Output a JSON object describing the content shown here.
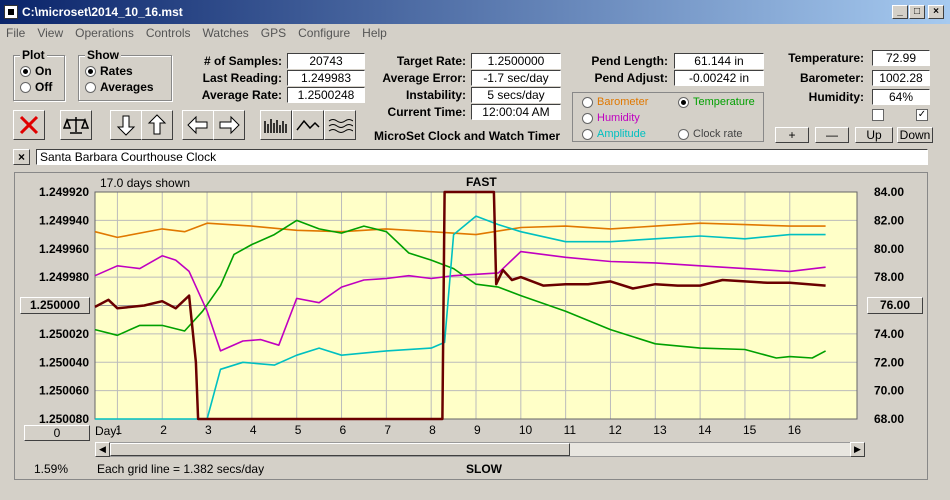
{
  "window": {
    "title": "C:\\microset\\2014_10_16.mst"
  },
  "menu": [
    "File",
    "View",
    "Operations",
    "Controls",
    "Watches",
    "GPS",
    "Configure",
    "Help"
  ],
  "plot_group": {
    "title": "Plot",
    "on": "On",
    "off": "Off",
    "selected": "On"
  },
  "show_group": {
    "title": "Show",
    "rates": "Rates",
    "averages": "Averages",
    "selected": "Rates"
  },
  "stats": [
    {
      "label": "# of Samples:",
      "value": "20743"
    },
    {
      "label": "Last Reading:",
      "value": "1.249983"
    },
    {
      "label": "Average Rate:",
      "value": "1.2500248"
    }
  ],
  "rates": [
    {
      "label": "Target Rate:",
      "value": "1.2500000"
    },
    {
      "label": "Average Error:",
      "value": "-1.7 sec/day"
    },
    {
      "label": "Instability:",
      "value": "5 secs/day"
    },
    {
      "label": "Current Time:",
      "value": "12:00:04 AM"
    }
  ],
  "pend": [
    {
      "label": "Pend Length:",
      "value": "61.144 in"
    },
    {
      "label": "Pend Adjust:",
      "value": "-0.00242 in"
    }
  ],
  "env": [
    {
      "label": "Temperature:",
      "value": "72.99"
    },
    {
      "label": "Barometer:",
      "value": "1002.28"
    },
    {
      "label": "Humidity:",
      "value": "64%"
    }
  ],
  "app_caption": "MicroSet Clock and Watch Timer",
  "sensor_options": {
    "barometer": {
      "label": "Barometer",
      "color": "#e07800"
    },
    "temperature": {
      "label": "Temperature",
      "color": "#00a000"
    },
    "humidity": {
      "label": "Humidity",
      "color": "#c000c0"
    },
    "amplitude": {
      "label": "Amplitude",
      "color": "#00c0c0"
    },
    "clock_rate": {
      "label": "Clock rate",
      "color": "#444444"
    },
    "selected": "temperature"
  },
  "env_buttons": {
    "plus": "+",
    "minus": "—",
    "up": "Up",
    "down": "Down"
  },
  "watch_name": "Santa Barbara Courthouse Clock",
  "chart_data": {
    "type": "line",
    "days_shown": "17.0 days shown",
    "top_label": "FAST",
    "bottom_label": "SLOW",
    "grid_note": "Each grid line = 1.382 secs/day",
    "left_ticks": [
      "1.249920",
      "1.249940",
      "1.249960",
      "1.249980",
      "1.250000",
      "1.250020",
      "1.250040",
      "1.250060",
      "1.250080"
    ],
    "right_ticks": [
      "84.00",
      "82.00",
      "80.00",
      "78.00",
      "76.00",
      "74.00",
      "72.00",
      "70.00",
      "68.00"
    ],
    "center_left_value": "1.250000",
    "center_right_value": "76.00",
    "left_range": [
      1.24992,
      1.25008
    ],
    "right_range": [
      68,
      84
    ],
    "x_label": "Day:",
    "x_range": [
      0.5,
      17.5
    ],
    "x_ticks": [
      1,
      2,
      3,
      4,
      5,
      6,
      7,
      8,
      9,
      10,
      11,
      12,
      13,
      14,
      15,
      16
    ],
    "x_tick_labels": [
      "1",
      "2",
      "3",
      "4",
      "5",
      "6",
      "7",
      "8",
      "9",
      "10",
      "11",
      "12",
      "13",
      "14",
      "15",
      "16"
    ],
    "bottom_left_value": "0",
    "zoom_percent": "1.59%",
    "series": [
      {
        "key": "barometer",
        "color": "#e07800",
        "x": [
          0.5,
          1,
          2,
          2.5,
          3,
          4,
          5,
          6,
          7,
          8,
          9,
          10,
          11,
          12,
          13,
          14,
          15,
          16,
          16.8
        ],
        "y": [
          81.2,
          80.8,
          81.4,
          81.2,
          81.8,
          81.6,
          81.3,
          81.2,
          81.4,
          81.2,
          81.0,
          81.5,
          81.6,
          81.4,
          81.6,
          81.8,
          81.7,
          81.6,
          81.6
        ]
      },
      {
        "key": "temperature",
        "color": "#00a000",
        "x": [
          0.5,
          1,
          1.5,
          2,
          2.5,
          2.9,
          3.3,
          3.6,
          4,
          4.5,
          5,
          5.5,
          6,
          6.5,
          7,
          7.5,
          8,
          8.5,
          9,
          9.5,
          10,
          11,
          12,
          13,
          14,
          15,
          15.7,
          16,
          16.5,
          16.8
        ],
        "y": [
          74.3,
          73.9,
          74.6,
          74.6,
          74.2,
          75.6,
          77.4,
          79.6,
          80.3,
          81.0,
          82.0,
          81.4,
          81.1,
          81.6,
          81.2,
          79.7,
          79.2,
          78.6,
          77.5,
          77.3,
          76.7,
          75.6,
          74.3,
          73.3,
          73.0,
          72.9,
          72.3,
          72.4,
          72.3,
          72.8
        ]
      },
      {
        "key": "humidity",
        "color": "#c000c0",
        "x": [
          0.5,
          1,
          1.5,
          2,
          2.3,
          2.6,
          3,
          3.3,
          3.8,
          4.2,
          4.6,
          5,
          5.5,
          6,
          6.5,
          7,
          7.5,
          8,
          8.5,
          9,
          9.5,
          10,
          11,
          12,
          13,
          14,
          15,
          16,
          16.8
        ],
        "y": [
          78.1,
          78.8,
          78.6,
          79.5,
          79.2,
          78.4,
          75.6,
          72.8,
          73.5,
          73.6,
          73.2,
          76.5,
          76.2,
          77.3,
          77.8,
          77.9,
          78.1,
          77.9,
          78.1,
          78.2,
          78.3,
          79.8,
          79.4,
          79.1,
          79.0,
          78.8,
          78.6,
          78.4,
          78.7
        ]
      },
      {
        "key": "amplitude",
        "color": "#00c0c0",
        "x": [
          0.5,
          1,
          2,
          2.9,
          3,
          3.3,
          3.8,
          4.5,
          5,
          5.5,
          6,
          7,
          8,
          8.3,
          8.5,
          9,
          9.5,
          10,
          11,
          12,
          13,
          14,
          15,
          16,
          16.8
        ],
        "y": [
          68.0,
          68.0,
          68.0,
          68.0,
          68.0,
          71.5,
          72.0,
          71.8,
          72.5,
          73.0,
          72.5,
          72.8,
          73.0,
          73.4,
          81.0,
          82.3,
          81.7,
          81.2,
          80.5,
          80.5,
          80.7,
          80.9,
          80.7,
          81.0,
          81.0
        ]
      },
      {
        "key": "clock_rate",
        "color": "#6a0000",
        "x": [
          0.5,
          0.8,
          1,
          1.3,
          1.6,
          2,
          2.3,
          2.6,
          2.75,
          2.8,
          2.9,
          3,
          3.5,
          8,
          8.25,
          8.3,
          8.4,
          9.4,
          9.45,
          9.6,
          9.8,
          10,
          10.5,
          11,
          11.5,
          12,
          12.5,
          13,
          13.5,
          14,
          14.5,
          15,
          15.5,
          16,
          16.8
        ],
        "y": [
          1.250001,
          1.249996,
          1.250002,
          1.250001,
          1.25,
          1.249997,
          1.250002,
          1.249993,
          1.25004,
          1.25008,
          1.25008,
          1.25008,
          1.25008,
          1.25008,
          1.25008,
          1.24992,
          1.24992,
          1.24992,
          1.249985,
          1.249975,
          1.249982,
          1.24998,
          1.249986,
          1.249985,
          1.249985,
          1.249983,
          1.249988,
          1.249985,
          1.249986,
          1.249986,
          1.249982,
          1.249983,
          1.249984,
          1.249984,
          1.249986
        ]
      }
    ]
  }
}
